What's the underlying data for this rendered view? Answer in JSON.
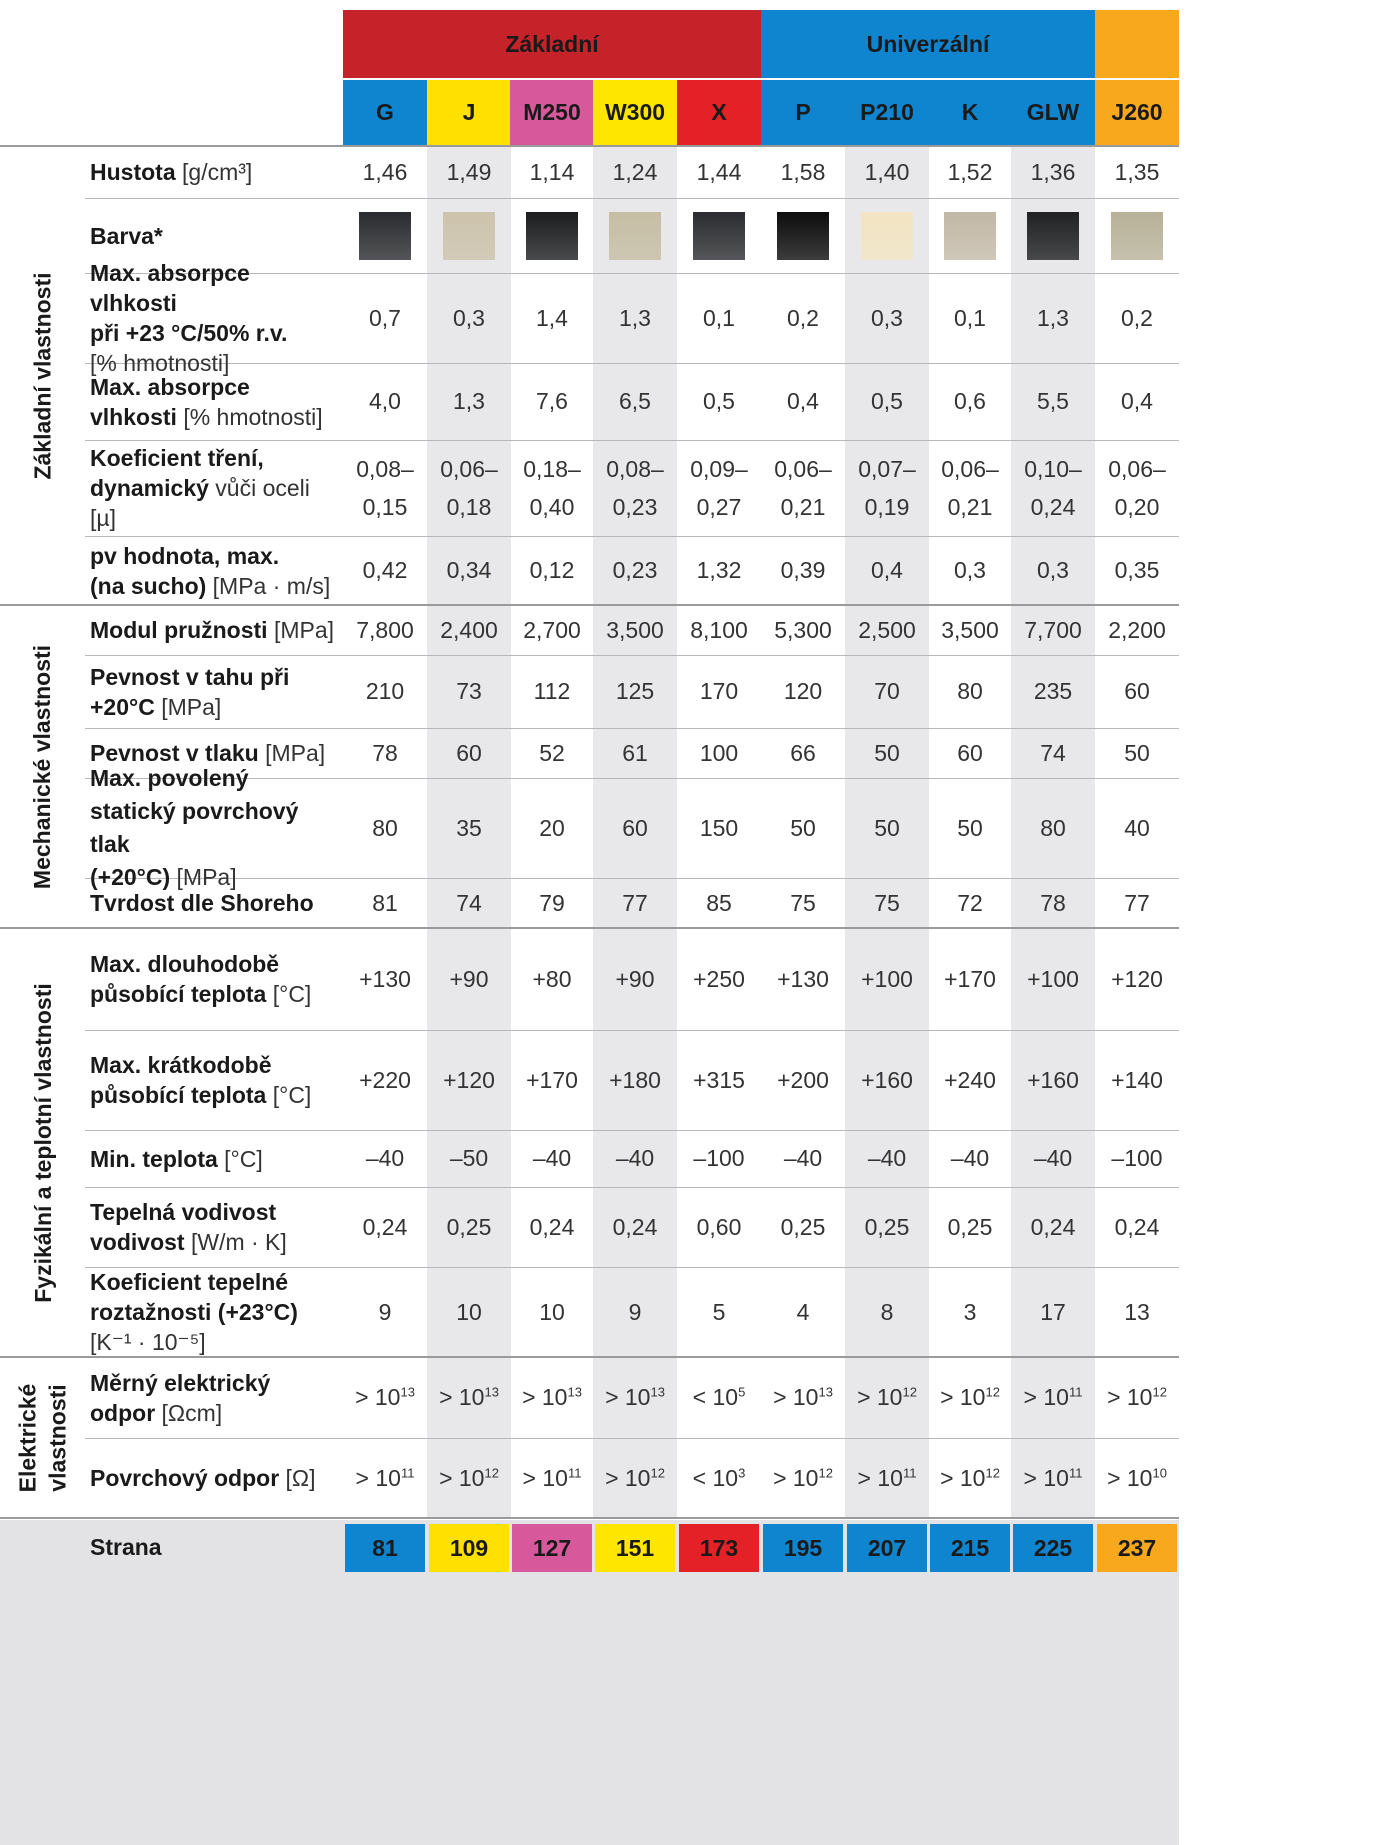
{
  "groups": [
    {
      "label": "Základní",
      "color": "#c62229"
    },
    {
      "label": "Univerzální",
      "color": "#0f85cf"
    },
    {
      "label": "",
      "color": "#f7a81d"
    }
  ],
  "materials": [
    {
      "code": "G",
      "color": "#0f85cf",
      "page": "81"
    },
    {
      "code": "J",
      "color": "#ffe000",
      "page": "109"
    },
    {
      "code": "M250",
      "color": "#d8589c",
      "page": "127"
    },
    {
      "code": "W300",
      "color": "#ffe600",
      "page": "151"
    },
    {
      "code": "X",
      "color": "#e32126",
      "page": "173"
    },
    {
      "code": "P",
      "color": "#0f85cf",
      "page": "195"
    },
    {
      "code": "P210",
      "color": "#0f85cf",
      "page": "207"
    },
    {
      "code": "K",
      "color": "#0f85cf",
      "page": "215"
    },
    {
      "code": "GLW",
      "color": "#0f85cf",
      "page": "225"
    },
    {
      "code": "J260",
      "color": "#f7a81d",
      "page": "237"
    }
  ],
  "sections": [
    {
      "label": "Základní vlastnosti"
    },
    {
      "label": "Mechanické vlastnosti"
    },
    {
      "label": "Fyzikální a teplotní vlastnosti"
    },
    {
      "label_line1": "Elektrické",
      "label_line2": "vlastnosti"
    }
  ],
  "rows": {
    "density": {
      "label_bold": "Hustota",
      "label_unit": "[g/cm³]",
      "values": [
        "1,46",
        "1,49",
        "1,14",
        "1,24",
        "1,44",
        "1,58",
        "1,40",
        "1,52",
        "1,36",
        "1,35"
      ]
    },
    "color": {
      "label_bold": "Barva*",
      "swatches": [
        "#2a2b2e",
        "#cdc3ac",
        "#1c1d1f",
        "#c6bea4",
        "#2b2c2f",
        "#0c0c0d",
        "#f3e5c3",
        "#c2b8a6",
        "#202123",
        "#b7b198"
      ]
    },
    "abs23": {
      "label_bold_1": "Max. absorpce vlhkosti",
      "label_bold_2": "při +23 °C/50% r.v.",
      "label_unit": "[% hmotnosti]",
      "values": [
        "0,7",
        "0,3",
        "1,4",
        "1,3",
        "0,1",
        "0,2",
        "0,3",
        "0,1",
        "1,3",
        "0,2"
      ]
    },
    "absmax": {
      "label_bold": "Max. absorpce vlhkosti",
      "label_unit": "[% hmotnosti]",
      "values": [
        "4,0",
        "1,3",
        "7,6",
        "6,5",
        "0,5",
        "0,4",
        "0,5",
        "0,6",
        "5,5",
        "0,4"
      ]
    },
    "friction": {
      "label_bold_1": "Koeficient tření,",
      "label_bold_2": "dynamický",
      "label_unit": "vůči oceli [µ]",
      "values_top": [
        "0,08–",
        "0,06–",
        "0,18–",
        "0,08–",
        "0,09–",
        "0,06–",
        "0,07–",
        "0,06–",
        "0,10–",
        "0,06–"
      ],
      "values_bottom": [
        "0,15",
        "0,18",
        "0,40",
        "0,23",
        "0,27",
        "0,21",
        "0,19",
        "0,21",
        "0,24",
        "0,20"
      ]
    },
    "pv": {
      "label_bold_1": "pv hodnota, max.",
      "label_bold_2": "(na sucho)",
      "label_unit": "[MPa · m/s]",
      "values": [
        "0,42",
        "0,34",
        "0,12",
        "0,23",
        "1,32",
        "0,39",
        "0,4",
        "0,3",
        "0,3",
        "0,35"
      ]
    },
    "modulus": {
      "label_bold": "Modul pružnosti",
      "label_unit": "[MPa]",
      "values": [
        "7,800",
        "2,400",
        "2,700",
        "3,500",
        "8,100",
        "5,300",
        "2,500",
        "3,500",
        "7,700",
        "2,200"
      ]
    },
    "tensile": {
      "label_bold_1": "Pevnost v tahu při",
      "label_bold_2": "+20°C",
      "label_unit": "[MPa]",
      "values": [
        "210",
        "73",
        "112",
        "125",
        "170",
        "120",
        "70",
        "80",
        "235",
        "60"
      ]
    },
    "compress": {
      "label_bold": "Pevnost v tlaku",
      "label_unit": "[MPa]",
      "values": [
        "78",
        "60",
        "52",
        "61",
        "100",
        "66",
        "50",
        "60",
        "74",
        "50"
      ]
    },
    "surfpress": {
      "label_bold_1": "Max. povolený",
      "label_bold_2": "statický povrchový tlak",
      "label_bold_3": "(+20°C)",
      "label_unit": "[MPa]",
      "values": [
        "80",
        "35",
        "20",
        "60",
        "150",
        "50",
        "50",
        "50",
        "80",
        "40"
      ]
    },
    "shore": {
      "label_bold": "Tvrdost dle Shoreho",
      "values": [
        "81",
        "74",
        "79",
        "77",
        "85",
        "75",
        "75",
        "72",
        "78",
        "77"
      ]
    },
    "tlong": {
      "label_bold_1": "Max. dlouhodobě",
      "label_bold_2": "působící teplota",
      "label_unit": "[°C]",
      "values": [
        "+130",
        "+90",
        "+80",
        "+90",
        "+250",
        "+130",
        "+100",
        "+170",
        "+100",
        "+120"
      ]
    },
    "tshort": {
      "label_bold_1": "Max. krátkodobě",
      "label_bold_2": "působící teplota",
      "label_unit": "[°C]",
      "values": [
        "+220",
        "+120",
        "+170",
        "+180",
        "+315",
        "+200",
        "+160",
        "+240",
        "+160",
        "+140"
      ]
    },
    "tmin": {
      "label_bold": "Min. teplota",
      "label_unit": "[°C]",
      "values": [
        "–40",
        "–50",
        "–40",
        "–40",
        "–100",
        "–40",
        "–40",
        "–40",
        "–40",
        "–100"
      ]
    },
    "conduct": {
      "label_bold_1": "Tepelná vodivost",
      "label_bold_2": "vodivost",
      "label_unit": "[W/m · K]",
      "values": [
        "0,24",
        "0,25",
        "0,24",
        "0,24",
        "0,60",
        "0,25",
        "0,25",
        "0,25",
        "0,24",
        "0,24"
      ]
    },
    "expansion": {
      "label_bold_1": "Koeficient tepelné",
      "label_bold_2": "roztažnosti (+23°C)",
      "label_unit": "[K⁻¹ · 10⁻⁵]",
      "values": [
        "9",
        "10",
        "10",
        "9",
        "5",
        "4",
        "8",
        "3",
        "17",
        "13"
      ]
    },
    "resist": {
      "label_bold": "Měrný elektrický odpor",
      "label_unit": "[Ωcm]",
      "values": [
        [
          "> 10",
          "13"
        ],
        [
          "> 10",
          "13"
        ],
        [
          "> 10",
          "13"
        ],
        [
          "> 10",
          "13"
        ],
        [
          "< 10",
          "5"
        ],
        [
          "> 10",
          "13"
        ],
        [
          "> 10",
          "12"
        ],
        [
          "> 10",
          "12"
        ],
        [
          "> 10",
          "11"
        ],
        [
          "> 10",
          "12"
        ]
      ]
    },
    "surfres": {
      "label_bold": "Povrchový odpor",
      "label_unit": "[Ω]",
      "values": [
        [
          "> 10",
          "11"
        ],
        [
          "> 10",
          "12"
        ],
        [
          "> 10",
          "11"
        ],
        [
          "> 10",
          "12"
        ],
        [
          "< 10",
          "3"
        ],
        [
          "> 10",
          "12"
        ],
        [
          "> 10",
          "11"
        ],
        [
          "> 10",
          "12"
        ],
        [
          "> 10",
          "11"
        ],
        [
          "> 10",
          "10"
        ]
      ]
    }
  },
  "footer": {
    "label": "Strana"
  }
}
